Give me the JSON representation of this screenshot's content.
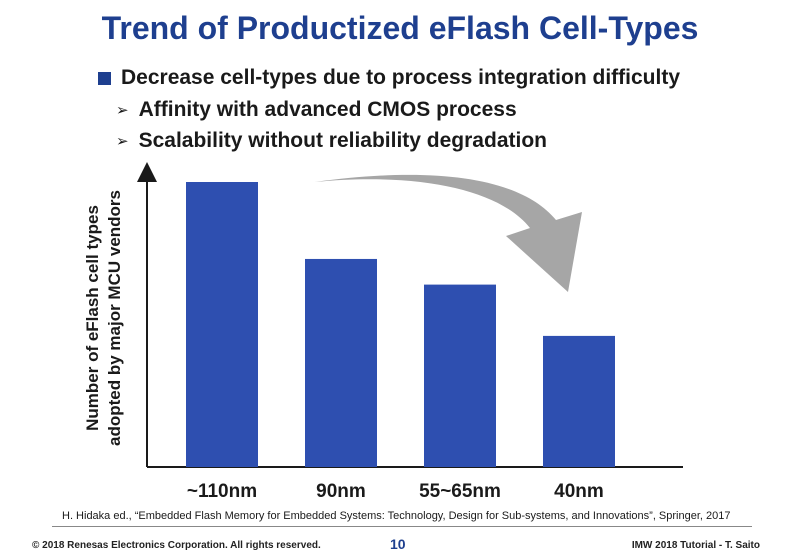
{
  "slide": {
    "title": "Trend of Productized eFlash Cell-Types",
    "bullet_main": "Decrease cell-types due to process integration difficulty",
    "sub_bullets": [
      "Affinity with advanced CMOS process",
      "Scalability without reliability degradation"
    ],
    "reference": "H. Hidaka ed., “Embedded Flash Memory for Embedded Systems: Technology, Design for Sub-systems, and Innovations”, Springer, 2017",
    "footer_left": "© 2018 Renesas Electronics Corporation. All rights reserved.",
    "page_number": "10",
    "footer_right": "IMW 2018 Tutorial  -  T. Saito"
  },
  "colors": {
    "title": "#1e3f8f",
    "bar": "#2e4fb0",
    "arrow": "#a6a6a6"
  },
  "icons": {
    "bullet_main": "square-bullet-icon",
    "sub_bullet": "chevron-right-icon",
    "trend": "curved-arrow-down-icon"
  },
  "chart_data": {
    "type": "bar",
    "categories": [
      "~110nm",
      "90nm",
      "55~65nm",
      "40nm"
    ],
    "values": [
      100,
      73,
      64,
      46
    ],
    "ylabel_lines": [
      "Number of eFlash cell types",
      "adopted by major MCU vendors"
    ],
    "xlabel": "",
    "ylim": [
      0,
      100
    ],
    "units": "relative (unlabeled axis)",
    "legend": "none",
    "grid": false,
    "annotation": "decreasing trend arrow"
  }
}
